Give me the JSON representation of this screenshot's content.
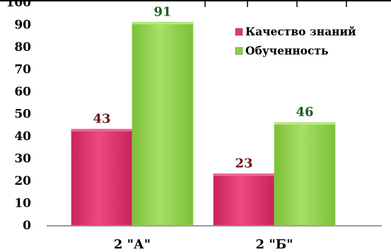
{
  "chart_data": {
    "type": "bar",
    "categories": [
      "2 \"А\"",
      "2 \"Б\""
    ],
    "series": [
      {
        "name": "Качество знаний",
        "values": [
          43,
          23
        ],
        "color": "#e4356f",
        "label_color": "#6b1212"
      },
      {
        "name": "Обученность",
        "values": [
          91,
          46
        ],
        "color": "#8cd045",
        "label_color": "#1b5e20"
      }
    ],
    "ylim": [
      0,
      100
    ],
    "yticks": [
      0,
      10,
      20,
      30,
      40,
      50,
      60,
      70,
      80,
      90,
      100
    ],
    "legend_position": "right",
    "grid": false,
    "title": "",
    "xlabel": "",
    "ylabel": ""
  }
}
